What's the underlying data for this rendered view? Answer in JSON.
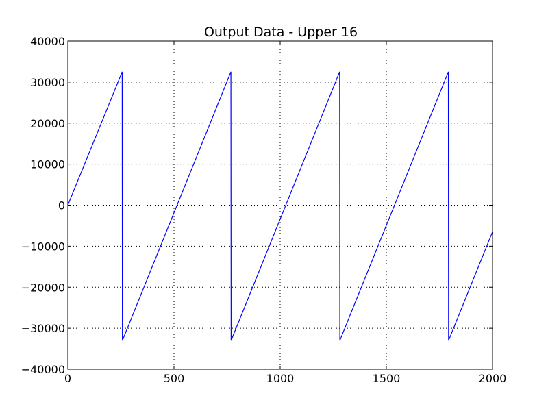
{
  "chart_data": {
    "type": "line",
    "title": "Output Data - Upper 16",
    "xlabel": "",
    "ylabel": "",
    "xlim": [
      0,
      2000
    ],
    "ylim": [
      -40000,
      40000
    ],
    "xticks": [
      0,
      500,
      1000,
      1500,
      2000
    ],
    "yticks": [
      -40000,
      -30000,
      -20000,
      -10000,
      0,
      10000,
      20000,
      30000,
      40000
    ],
    "xtick_labels": [
      "0",
      "500",
      "1000",
      "1500",
      "2000"
    ],
    "ytick_labels": [
      "−40000",
      "−30000",
      "−20000",
      "−10000",
      "0",
      "10000",
      "20000",
      "30000",
      "40000"
    ],
    "grid": true,
    "series": [
      {
        "color": "#0000ff",
        "x": [
          0,
          256,
          257,
          768,
          769,
          1280,
          1281,
          1792,
          1793,
          2000
        ],
        "y": [
          0,
          32500,
          -33000,
          32500,
          -33000,
          32500,
          -33000,
          32500,
          -33000,
          -6500
        ]
      }
    ]
  }
}
